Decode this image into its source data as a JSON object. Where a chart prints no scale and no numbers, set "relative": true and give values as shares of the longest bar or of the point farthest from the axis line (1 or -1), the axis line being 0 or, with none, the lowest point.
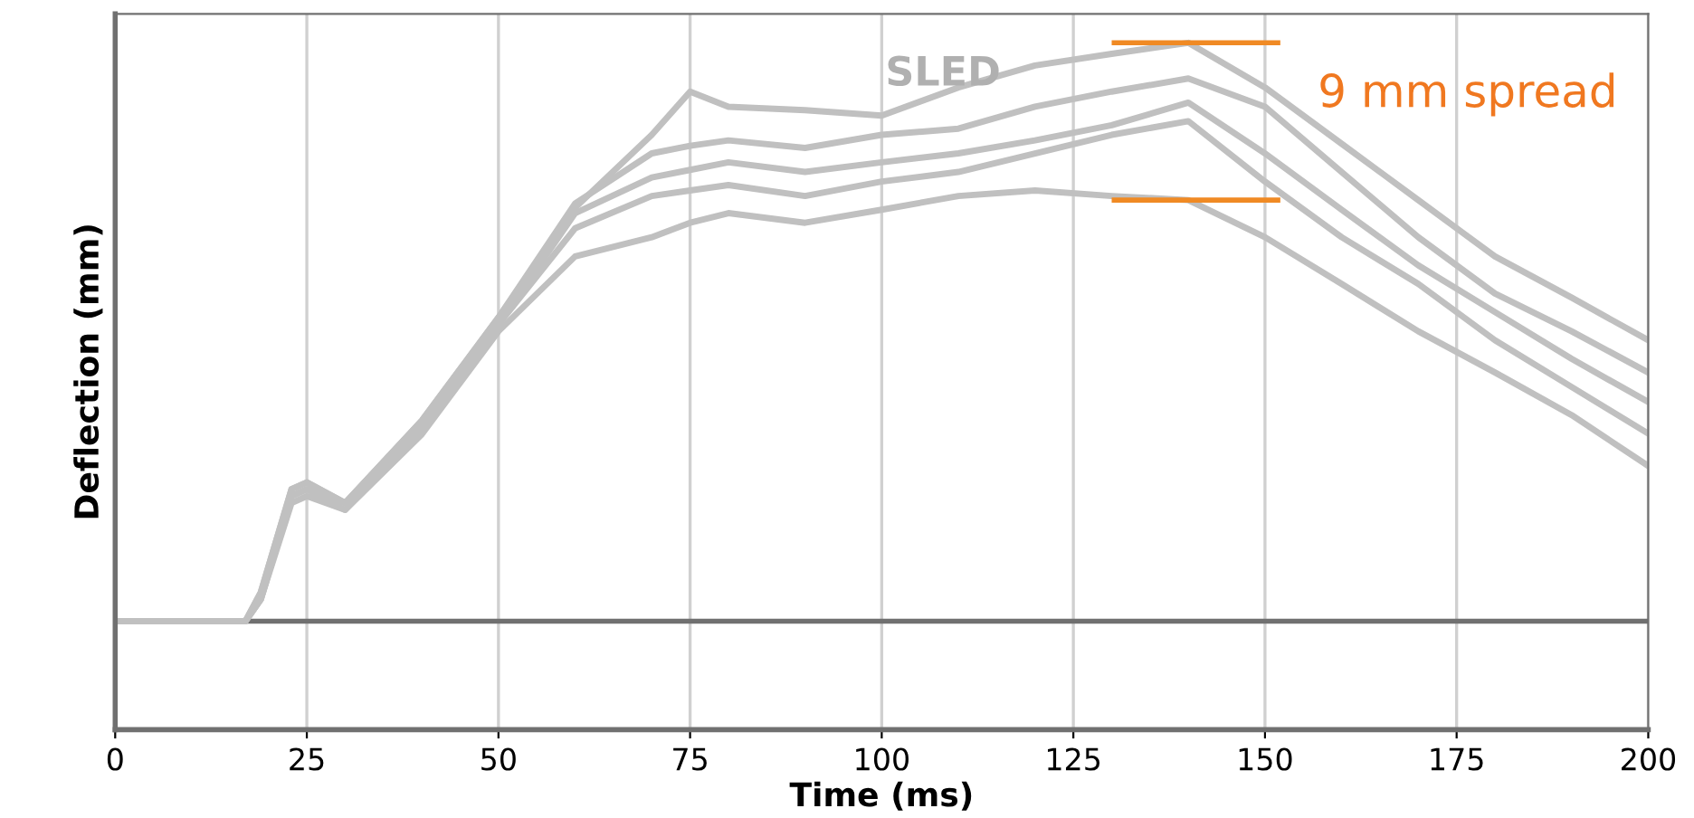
{
  "chart_data": {
    "type": "line",
    "title": "SLED",
    "xlabel": "Time (ms)",
    "ylabel": "Deflection (mm)",
    "relative": true,
    "xlim": [
      0,
      200
    ],
    "xticks": [
      0,
      25,
      50,
      75,
      100,
      125,
      150,
      175,
      200
    ],
    "grid": "x",
    "legend": false,
    "marker": "none",
    "line_style": "solid",
    "x": [
      0,
      17,
      19,
      23,
      25,
      30,
      40,
      50,
      60,
      70,
      75,
      80,
      90,
      100,
      110,
      120,
      130,
      140,
      150,
      160,
      170,
      180,
      190,
      200
    ],
    "series": [
      {
        "color": "#c0c0c0",
        "values": [
          0.158,
          0.158,
          0.2,
          0.35,
          0.36,
          0.33,
          0.45,
          0.6,
          0.76,
          0.866,
          0.929,
          0.907,
          0.902,
          0.894,
          0.935,
          0.967,
          0.984,
          1.0,
          0.935,
          0.853,
          0.771,
          0.689,
          0.629,
          0.567
        ]
      },
      {
        "color": "#c0c0c0",
        "values": [
          0.158,
          0.158,
          0.19,
          0.33,
          0.34,
          0.32,
          0.43,
          0.58,
          0.689,
          0.717,
          0.738,
          0.752,
          0.738,
          0.757,
          0.777,
          0.785,
          0.777,
          0.771,
          0.717,
          0.649,
          0.58,
          0.52,
          0.458,
          0.384
        ]
      },
      {
        "color": "#c0c0c0",
        "values": [
          0.158,
          0.158,
          0.19,
          0.34,
          0.35,
          0.33,
          0.44,
          0.59,
          0.752,
          0.804,
          0.815,
          0.826,
          0.812,
          0.826,
          0.839,
          0.858,
          0.88,
          0.913,
          0.839,
          0.757,
          0.676,
          0.608,
          0.54,
          0.477
        ]
      },
      {
        "color": "#c0c0c0",
        "values": [
          0.158,
          0.158,
          0.2,
          0.35,
          0.36,
          0.33,
          0.45,
          0.6,
          0.766,
          0.839,
          0.85,
          0.858,
          0.847,
          0.866,
          0.875,
          0.907,
          0.929,
          0.948,
          0.907,
          0.812,
          0.717,
          0.635,
          0.58,
          0.52
        ]
      },
      {
        "color": "#c0c0c0",
        "values": [
          0.158,
          0.158,
          0.19,
          0.34,
          0.35,
          0.32,
          0.44,
          0.59,
          0.73,
          0.777,
          0.785,
          0.793,
          0.777,
          0.798,
          0.812,
          0.839,
          0.866,
          0.886,
          0.798,
          0.717,
          0.649,
          0.567,
          0.499,
          0.431
        ]
      }
    ],
    "ref_lines": [
      {
        "axis": "y",
        "value": 0.158,
        "color": "#707070"
      },
      {
        "axis": "y",
        "value": 1.0,
        "color": "#f08a24"
      },
      {
        "axis": "y",
        "value": 0.771,
        "color": "#f08a24"
      }
    ],
    "annotations": [
      "9 mm spread"
    ]
  }
}
